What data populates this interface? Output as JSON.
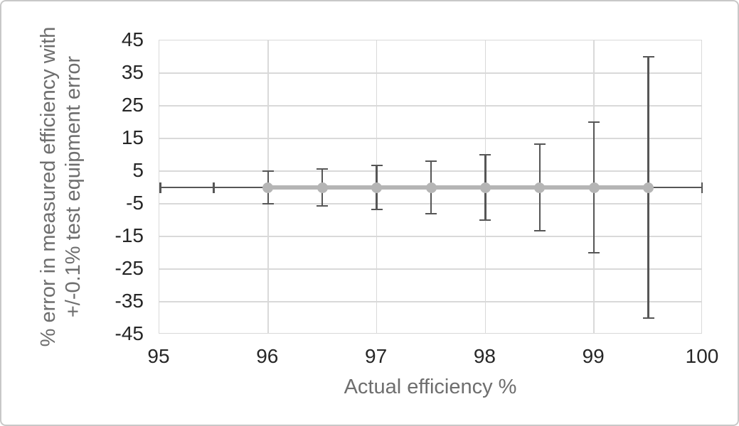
{
  "axes": {
    "x_title": "Actual efficiency %",
    "y_title_line1": "% error in measured efficiency with",
    "y_title_line2": "+/-0.1% test equipment error"
  },
  "chart_data": {
    "type": "scatter",
    "title": "",
    "xlabel": "Actual efficiency %",
    "ylabel": "% error in measured efficiency with +/-0.1% test equipment error",
    "xlim": [
      95,
      100
    ],
    "ylim": [
      -45,
      45
    ],
    "x_ticks": [
      95,
      96,
      97,
      98,
      99,
      100
    ],
    "y_ticks": [
      45,
      35,
      25,
      15,
      5,
      -5,
      -15,
      -25,
      -35,
      -45
    ],
    "grid": true,
    "legend": "none",
    "points": [
      {
        "x": 95.5,
        "y": 0,
        "marker": false,
        "y_error": 0
      },
      {
        "x": 96,
        "y": 0,
        "marker": true,
        "y_error": 5
      },
      {
        "x": 96.5,
        "y": 0,
        "marker": true,
        "y_error": 5.7
      },
      {
        "x": 97,
        "y": 0,
        "marker": true,
        "y_error": 6.7
      },
      {
        "x": 97.5,
        "y": 0,
        "marker": true,
        "y_error": 8
      },
      {
        "x": 98,
        "y": 0,
        "marker": true,
        "y_error": 10
      },
      {
        "x": 98.5,
        "y": 0,
        "marker": true,
        "y_error": 13.3
      },
      {
        "x": 99,
        "y": 0,
        "marker": true,
        "y_error": 20
      },
      {
        "x": 99.5,
        "y": 0,
        "marker": true,
        "y_error": 40
      }
    ],
    "zero_line": {
      "y": 0,
      "x_from": 95,
      "x_to": 100,
      "end_caps": [
        95,
        100
      ]
    },
    "series_line": {
      "y": 0,
      "x_from": 96,
      "x_to": 99.5
    },
    "colors": {
      "series": "#b5b5b5",
      "error_bar": "#565656",
      "gridline": "#d9d9d9",
      "tick_label": "#262626",
      "axis_title": "#6e6e6e",
      "chart_border": "#c8c8c8"
    }
  }
}
